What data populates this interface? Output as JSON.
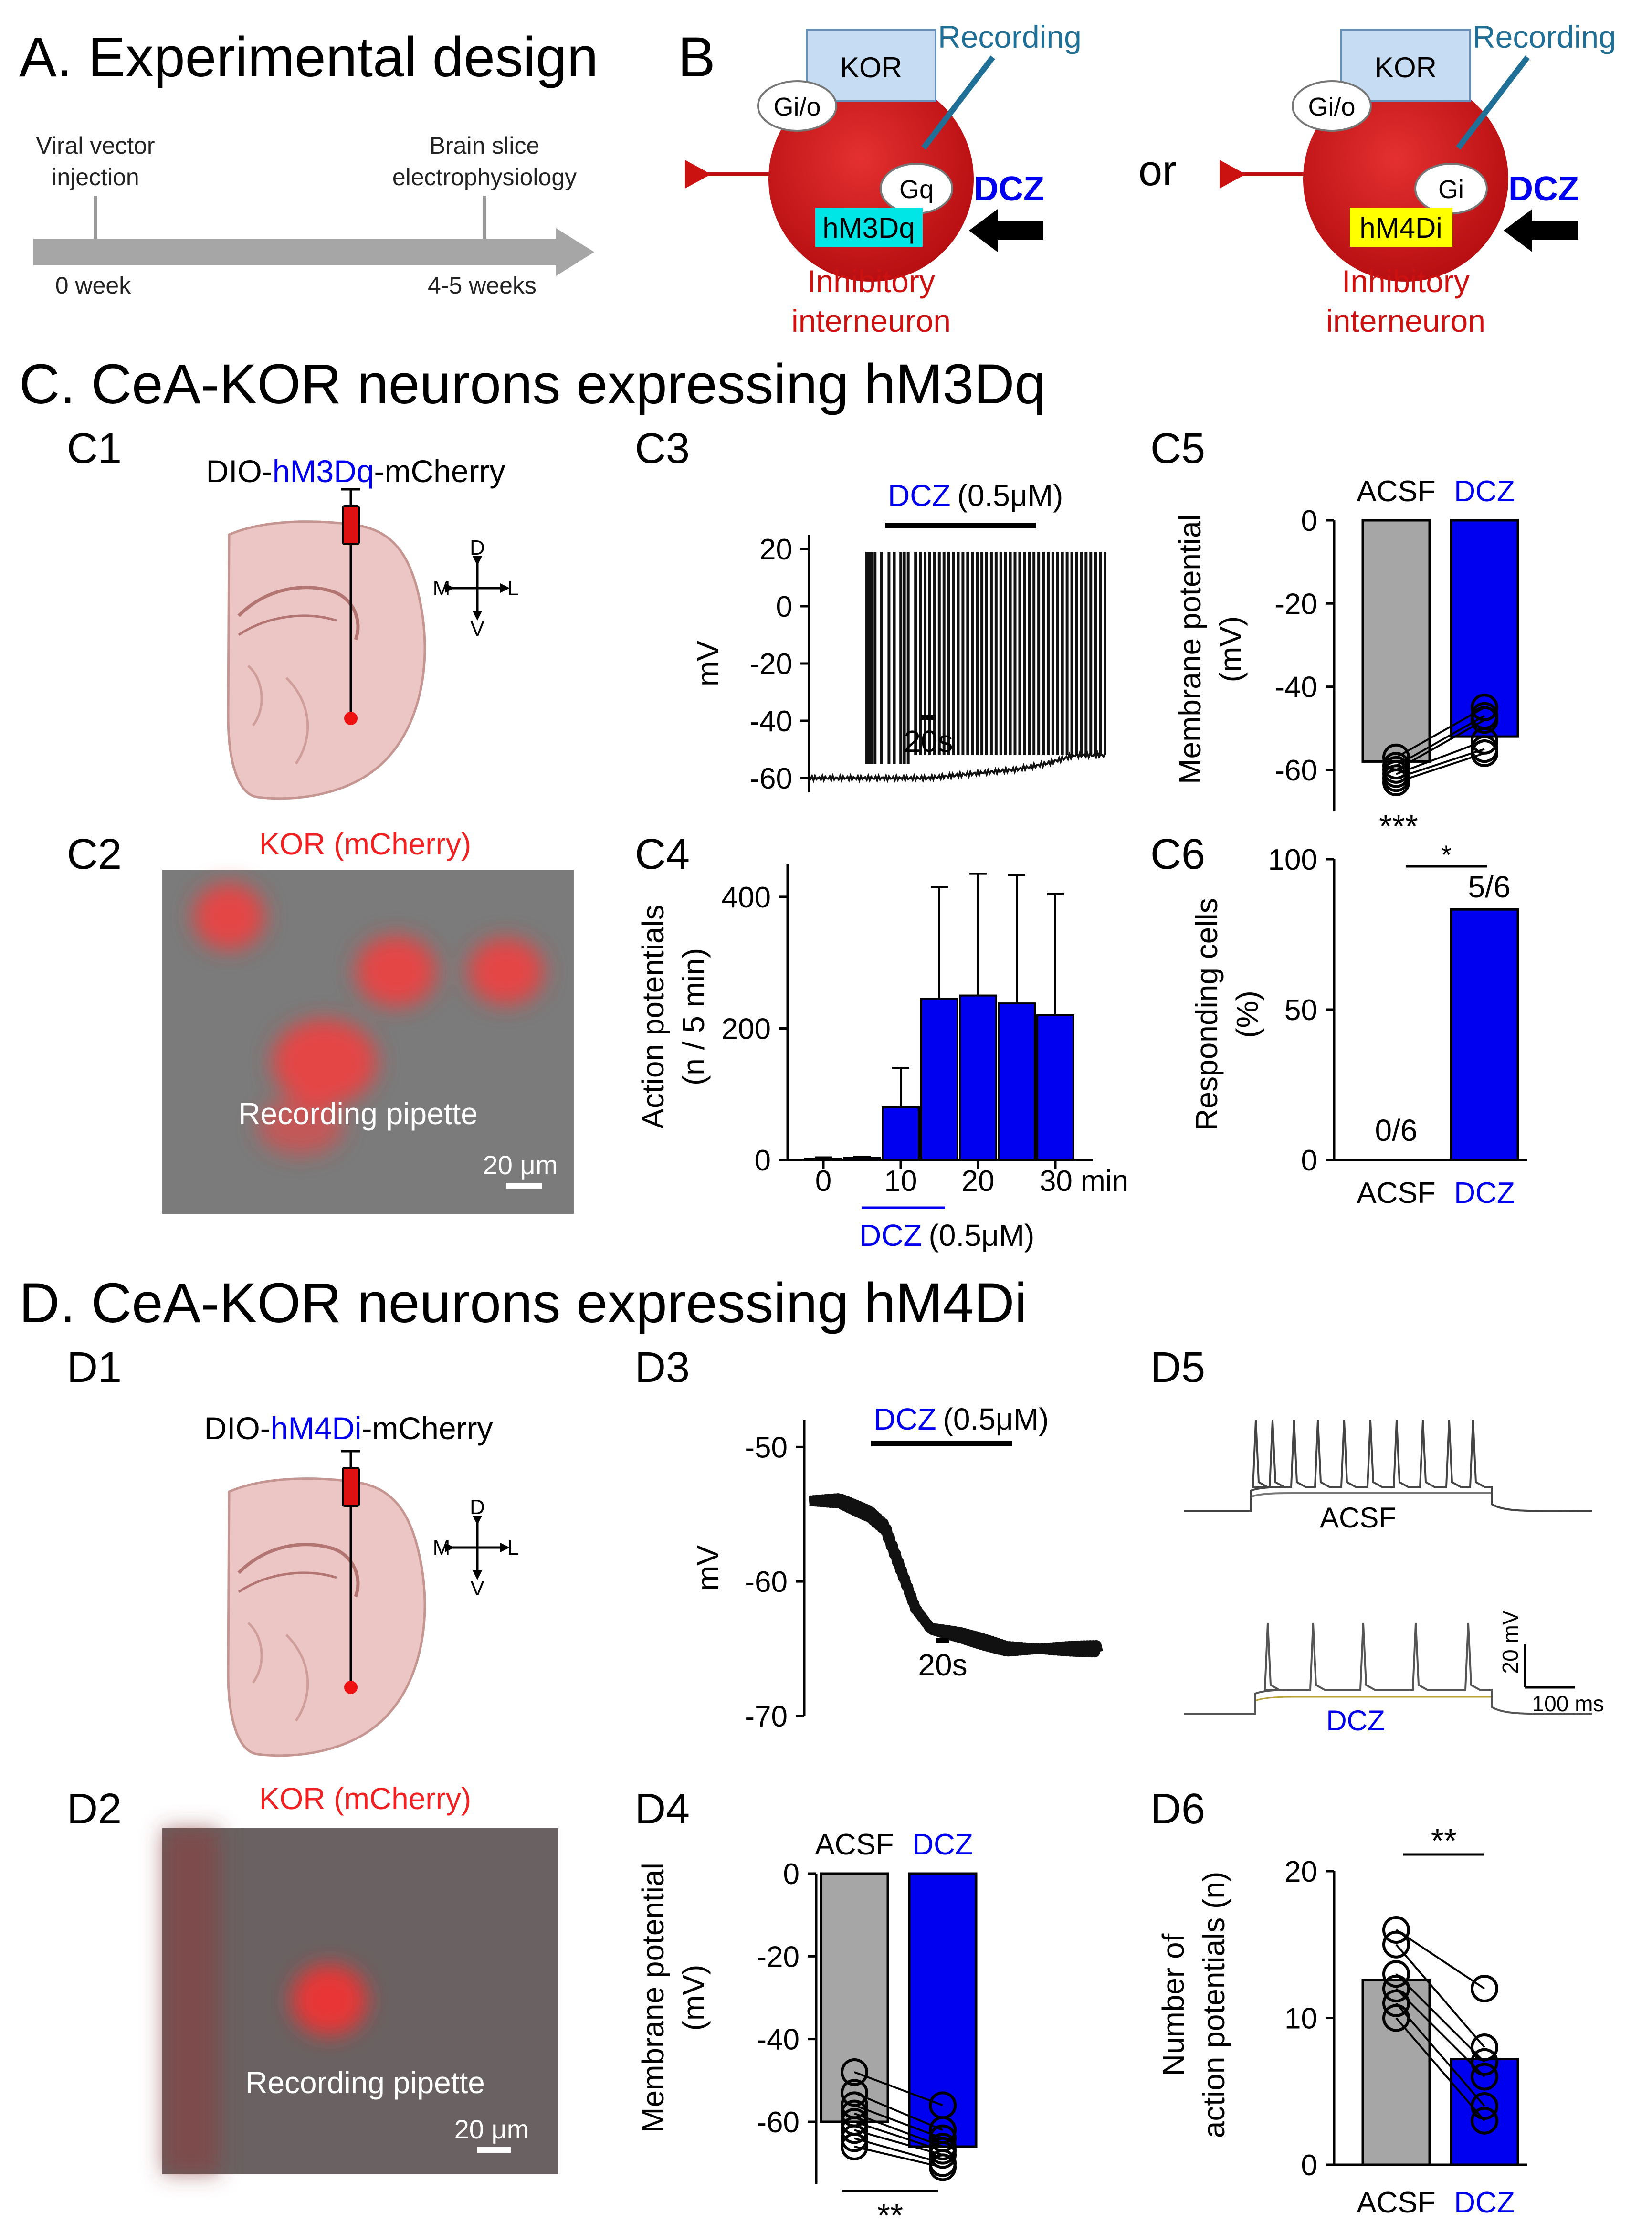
{
  "panelA": {
    "heading": "A. Experimental design",
    "event1_line1": "Viral vector",
    "event1_line2": "injection",
    "event2_line1": "Brain slice",
    "event2_line2": "electrophysiology",
    "time1": "0 week",
    "time2": "4-5 weeks"
  },
  "panelB": {
    "label": "B",
    "or": "or",
    "left": {
      "receptor": "KOR",
      "gio": "Gi/o",
      "recording": "Recording",
      "gprotein": "Gq",
      "dreadd": "hM3Dq",
      "drug": "DCZ",
      "cell_line1": "Inhibitory",
      "cell_line2": "interneuron"
    },
    "right": {
      "receptor": "KOR",
      "gio": "Gi/o",
      "recording": "Recording",
      "gprotein": "Gi",
      "dreadd": "hM4Di",
      "drug": "DCZ",
      "cell_line1": "Inhibitory",
      "cell_line2": "interneuron"
    }
  },
  "sectionC": {
    "heading": "C. CeA-KOR neurons expressing hM3Dq",
    "c1": {
      "label": "C1",
      "virus_prefix": "DIO-",
      "virus_mid": "hM3Dq",
      "virus_suffix": "-mCherry",
      "dir_d": "D",
      "dir_v": "V",
      "dir_m": "M",
      "dir_l": "L"
    },
    "c2": {
      "label": "C2",
      "title": "KOR (mCherry)",
      "pipette": "Recording pipette",
      "scale": "20 μm"
    },
    "c3": {
      "label": "C3",
      "drug": "DCZ",
      "conc": "(0.5μM)",
      "ylabel": "mV",
      "yticks": [
        "20",
        "0",
        "-20",
        "-40",
        "-60"
      ],
      "scale": "20s"
    },
    "c4": {
      "label": "C4",
      "ylabel1": "Action potentials",
      "ylabel2": "(n / 5 min)",
      "yticks": [
        "400",
        "200",
        "0"
      ],
      "xticks": [
        "0",
        "10",
        "20",
        "30 min"
      ],
      "drug": "DCZ",
      "conc": "(0.5μM)"
    },
    "c5": {
      "label": "C5",
      "ylabel1": "Membrane potential",
      "ylabel2": "(mV)",
      "yticks": [
        "0",
        "-20",
        "-40",
        "-60"
      ],
      "cat1": "ACSF",
      "cat2": "DCZ",
      "sig": "***"
    },
    "c6": {
      "label": "C6",
      "ylabel1": "Responding cells",
      "ylabel2": "(%)",
      "yticks": [
        "100",
        "50",
        "0"
      ],
      "cat1": "ACSF",
      "cat2": "DCZ",
      "sig": "*",
      "frac1": "0/6",
      "frac2": "5/6"
    }
  },
  "sectionD": {
    "heading": "D. CeA-KOR neurons expressing hM4Di",
    "d1": {
      "label": "D1",
      "virus_prefix": "DIO-",
      "virus_mid": "hM4Di",
      "virus_suffix": "-mCherry",
      "dir_d": "D",
      "dir_v": "V",
      "dir_m": "M",
      "dir_l": "L"
    },
    "d2": {
      "label": "D2",
      "title": "KOR (mCherry)",
      "pipette": "Recording pipette",
      "scale": "20 μm"
    },
    "d3": {
      "label": "D3",
      "drug": "DCZ",
      "conc": "(0.5μM)",
      "ylabel": "mV",
      "yticks": [
        "-50",
        "-60",
        "-70"
      ],
      "scale": "20s"
    },
    "d4": {
      "label": "D4",
      "ylabel1": "Membrane potential",
      "ylabel2": "(mV)",
      "yticks": [
        "0",
        "-20",
        "-40",
        "-60"
      ],
      "cat1": "ACSF",
      "cat2": "DCZ",
      "sig": "**"
    },
    "d5": {
      "label": "D5",
      "acsf": "ACSF",
      "dcz": "DCZ",
      "scale_v": "20 mV",
      "scale_t": "100 ms"
    },
    "d6": {
      "label": "D6",
      "ylabel1": "Number of",
      "ylabel2": "action potentials (n)",
      "yticks": [
        "20",
        "10",
        "0"
      ],
      "cat1": "ACSF",
      "cat2": "DCZ",
      "sig": "**"
    }
  },
  "colors": {
    "blue": "#0000ee",
    "red": "#cc1111",
    "gray": "#a6a6a6",
    "bar_blue": "#0000f0",
    "cyan": "#00e5e5",
    "yellow": "#ffff00",
    "box": "#c6dcf2"
  },
  "chart_data": [
    {
      "id": "C3",
      "type": "line",
      "title": "DCZ (0.5μM)",
      "ylabel": "mV",
      "ylim": [
        -65,
        25
      ],
      "series": [
        {
          "name": "membrane potential",
          "x": [
            0,
            20,
            40,
            50,
            60,
            70,
            80,
            90,
            100
          ],
          "values": [
            -60,
            -60,
            -60,
            -59,
            -58,
            -57,
            -55,
            -52,
            -52
          ]
        }
      ]
    },
    {
      "id": "C4",
      "type": "bar",
      "ylabel": "Action potentials (n / 5 min)",
      "xlabel": "min",
      "ylim": [
        0,
        450
      ],
      "categories": [
        "0",
        "5",
        "10",
        "15",
        "20",
        "25",
        "30"
      ],
      "values": [
        2,
        3,
        80,
        245,
        250,
        238,
        220
      ],
      "errors": [
        2,
        2,
        60,
        170,
        185,
        195,
        185
      ]
    },
    {
      "id": "C5",
      "type": "bar",
      "ylabel": "Membrane potential (mV)",
      "ylim": [
        -70,
        0
      ],
      "categories": [
        "ACSF",
        "DCZ"
      ],
      "values": [
        -58,
        -52
      ],
      "paired": [
        [
          -57,
          -45
        ],
        [
          -59,
          -47
        ],
        [
          -60,
          -48
        ],
        [
          -61,
          -53
        ],
        [
          -62,
          -55
        ],
        [
          -63,
          -56
        ]
      ]
    },
    {
      "id": "C6",
      "type": "bar",
      "ylabel": "Responding cells (%)",
      "ylim": [
        0,
        100
      ],
      "categories": [
        "ACSF",
        "DCZ"
      ],
      "values": [
        0,
        83.3
      ]
    },
    {
      "id": "D3",
      "type": "line",
      "title": "DCZ (0.5μM)",
      "ylabel": "mV",
      "ylim": [
        -70,
        -48
      ],
      "series": [
        {
          "name": "membrane potential",
          "x": [
            0,
            20,
            40,
            50,
            60,
            70,
            80,
            100,
            130,
            160,
            190
          ],
          "values": [
            -54,
            -54,
            -55,
            -56,
            -59,
            -62,
            -63.5,
            -64,
            -65,
            -65,
            -65
          ]
        }
      ]
    },
    {
      "id": "D4",
      "type": "bar",
      "ylabel": "Membrane potential (mV)",
      "ylim": [
        -75,
        0
      ],
      "categories": [
        "ACSF",
        "DCZ"
      ],
      "values": [
        -60,
        -66
      ],
      "paired": [
        [
          -48,
          -56
        ],
        [
          -53,
          -62
        ],
        [
          -56,
          -64
        ],
        [
          -58,
          -66
        ],
        [
          -60,
          -67
        ],
        [
          -62,
          -68
        ],
        [
          -64,
          -70
        ],
        [
          -66,
          -71
        ]
      ]
    },
    {
      "id": "D6",
      "type": "bar",
      "ylabel": "Number of action potentials (n)",
      "ylim": [
        0,
        20
      ],
      "categories": [
        "ACSF",
        "DCZ"
      ],
      "values": [
        12.6,
        7.2
      ],
      "paired": [
        [
          16,
          12
        ],
        [
          15,
          8
        ],
        [
          13,
          7
        ],
        [
          12,
          6
        ],
        [
          11,
          4
        ],
        [
          10,
          3
        ]
      ]
    }
  ]
}
